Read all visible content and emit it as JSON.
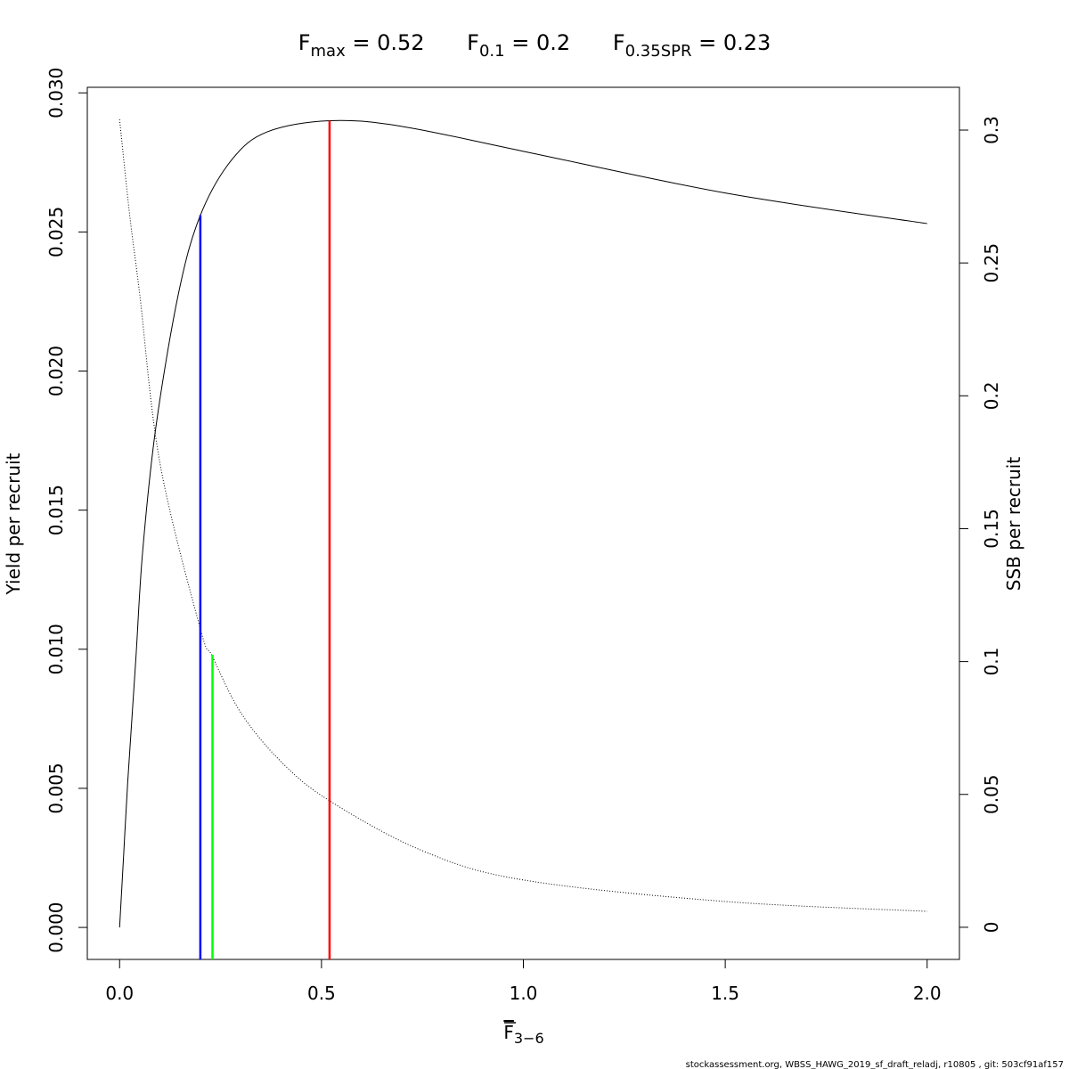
{
  "chart_data": {
    "type": "line",
    "title_parts": [
      {
        "base": "F",
        "sub": "max",
        "rest": " = 0.52"
      },
      {
        "base": "F",
        "sub": "0.1",
        "rest": " = 0.2"
      },
      {
        "base": "F",
        "sub": "0.35SPR",
        "rest": " = 0.23"
      }
    ],
    "x_label": {
      "base": "F",
      "sub": "3−6"
    },
    "y_label": "Yield per recruit",
    "y2_label": "SSB per recruit",
    "footer": "stockassessment.org, WBSS_HAWG_2019_sf_draft_reladj, r10805 , git: 503cf91af157",
    "xlim": [
      -0.08,
      2.08
    ],
    "ylim": [
      -0.00115,
      0.0302
    ],
    "y2lim": [
      -0.0121,
      0.3161
    ],
    "xticks": [
      {
        "value": 0,
        "label": "0.0"
      },
      {
        "value": 0.5,
        "label": "0.5"
      },
      {
        "value": 1,
        "label": "1.0"
      },
      {
        "value": 1.5,
        "label": "1.5"
      },
      {
        "value": 2,
        "label": "2.0"
      }
    ],
    "yticks": [
      {
        "value": 0,
        "label": "0.000"
      },
      {
        "value": 0.005,
        "label": "0.005"
      },
      {
        "value": 0.01,
        "label": "0.010"
      },
      {
        "value": 0.015,
        "label": "0.015"
      },
      {
        "value": 0.02,
        "label": "0.020"
      },
      {
        "value": 0.025,
        "label": "0.025"
      },
      {
        "value": 0.03,
        "label": "0.030"
      }
    ],
    "y2ticks": [
      0,
      0.05,
      0.1,
      0.15,
      0.2,
      0.25,
      0.3
    ],
    "series": [
      {
        "name": "Yield per recruit",
        "color": "#000000",
        "dash": "solid",
        "x": [
          0,
          0.01,
          0.02,
          0.04,
          0.057,
          0.09,
          0.146,
          0.2,
          0.278,
          0.366,
          0.52,
          0.697,
          1.0,
          1.5,
          2.0
        ],
        "values": [
          0,
          0.0026,
          0.0052,
          0.0096,
          0.0135,
          0.018,
          0.0228,
          0.0256,
          0.0276,
          0.0286,
          0.029,
          0.0288,
          0.0279,
          0.0264,
          0.0253
        ]
      },
      {
        "name": "SSB per recruit",
        "color": "#000000",
        "dash": "dotted",
        "axis": "y2",
        "x": [
          0,
          0.025,
          0.05,
          0.1,
          0.2,
          0.23,
          0.3,
          0.4,
          0.52,
          0.75,
          1.0,
          1.5,
          2.0
        ],
        "values": [
          0.304,
          0.268,
          0.238,
          0.1746,
          0.1123,
          0.1019,
          0.0808,
          0.0623,
          0.0476,
          0.0288,
          0.0178,
          0.0097,
          0.006
        ]
      }
    ],
    "reference_lines": [
      {
        "x": 0.2,
        "top": 0.0256,
        "color": "#0000ff"
      },
      {
        "x": 0.23,
        "top": 0.0098,
        "color": "#00ff00"
      },
      {
        "x": 0.52,
        "top": 0.029,
        "color": "#ff0000"
      }
    ]
  }
}
